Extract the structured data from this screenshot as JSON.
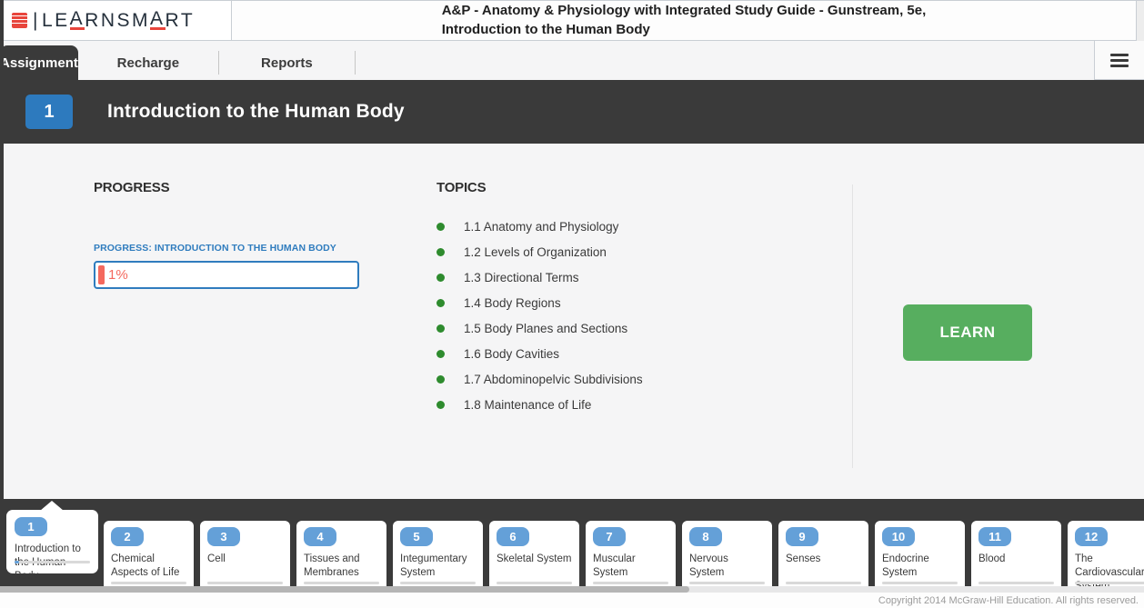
{
  "header": {
    "brand": "LEARNSMART",
    "publisher_icon": "mcgraw-hill-education-logo",
    "course_title_line1": "A&P - Anatomy & Physiology with Integrated Study Guide - Gunstream, 5e,",
    "course_title_line2": "Introduction to the Human Body"
  },
  "tabs": [
    {
      "label": "Assignment",
      "active": true
    },
    {
      "label": "Recharge",
      "active": false
    },
    {
      "label": "Reports",
      "active": false
    }
  ],
  "menu_icon": "hamburger-menu-icon",
  "banner": {
    "chapter_number": "1",
    "title": "Introduction to the Human Body"
  },
  "progress": {
    "section_heading": "PROGRESS",
    "label": "PROGRESS: INTRODUCTION TO THE HUMAN BODY",
    "value_text": "1%",
    "percent": 1
  },
  "topics": {
    "section_heading": "TOPICS",
    "items": [
      "1.1 Anatomy and Physiology",
      "1.2 Levels of Organization",
      "1.3 Directional Terms",
      "1.4 Body Regions",
      "1.5 Body Planes and Sections",
      "1.6 Body Cavities",
      "1.7 Abdominopelvic Subdivisions",
      "1.8 Maintenance of Life"
    ]
  },
  "actions": {
    "learn_label": "LEARN"
  },
  "chapters": [
    {
      "number": "1",
      "title": "Introduction to the Human Body",
      "active": true,
      "progress_shown": true
    },
    {
      "number": "2",
      "title": "Chemical Aspects of Life",
      "active": false,
      "progress_shown": false
    },
    {
      "number": "3",
      "title": "Cell",
      "active": false,
      "progress_shown": false
    },
    {
      "number": "4",
      "title": "Tissues and Membranes",
      "active": false,
      "progress_shown": false
    },
    {
      "number": "5",
      "title": "Integumentary System",
      "active": false,
      "progress_shown": false
    },
    {
      "number": "6",
      "title": "Skeletal System",
      "active": false,
      "progress_shown": false
    },
    {
      "number": "7",
      "title": "Muscular System",
      "active": false,
      "progress_shown": false
    },
    {
      "number": "8",
      "title": "Nervous System",
      "active": false,
      "progress_shown": false
    },
    {
      "number": "9",
      "title": "Senses",
      "active": false,
      "progress_shown": false
    },
    {
      "number": "10",
      "title": "Endocrine System",
      "active": false,
      "progress_shown": false
    },
    {
      "number": "11",
      "title": "Blood",
      "active": false,
      "progress_shown": false
    },
    {
      "number": "12",
      "title": "The Cardiovascular System",
      "active": false,
      "progress_shown": false
    }
  ],
  "footer": {
    "copyright": "Copyright 2014 McGraw-Hill Education. All rights reserved."
  },
  "colors": {
    "accent_blue": "#2f7cbe",
    "badge_blue": "#2d7abe",
    "card_badge_blue": "#64a0d8",
    "green_dot": "#2e8b2e",
    "green_button": "#57ae5f",
    "salmon": "#f4695e",
    "dark_bar": "#3a3a3a"
  }
}
